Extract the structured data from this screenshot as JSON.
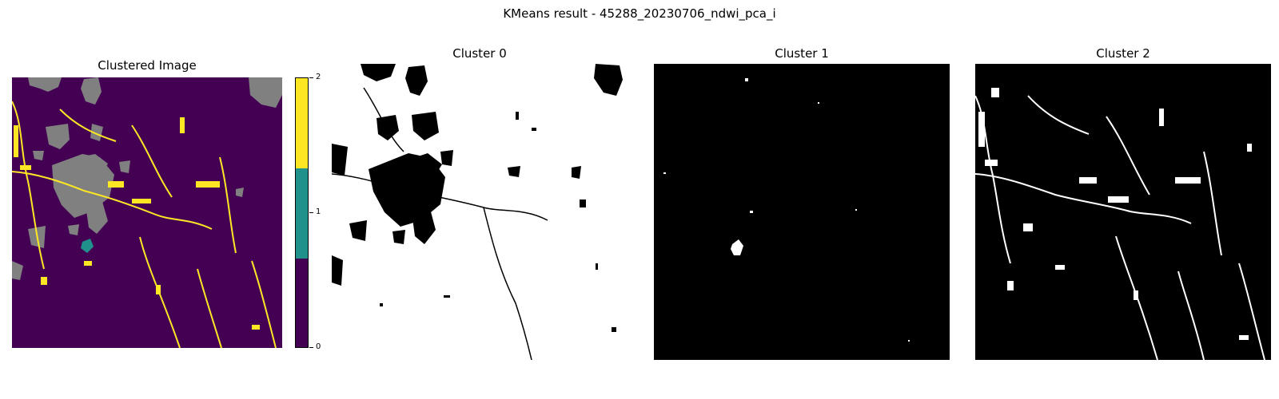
{
  "figure": {
    "suptitle": "KMeans result - 45288_20230706_ndwi_pca_i"
  },
  "panels": [
    {
      "title": "Clustered Image"
    },
    {
      "title": "Cluster 0"
    },
    {
      "title": "Cluster 1"
    },
    {
      "title": "Cluster 2"
    }
  ],
  "colorbar": {
    "ticks": [
      "2",
      "1",
      "0"
    ],
    "colors": {
      "class0": "#440154",
      "class1": "#21918c",
      "class2": "#fde725",
      "masked": "#808080"
    }
  }
}
